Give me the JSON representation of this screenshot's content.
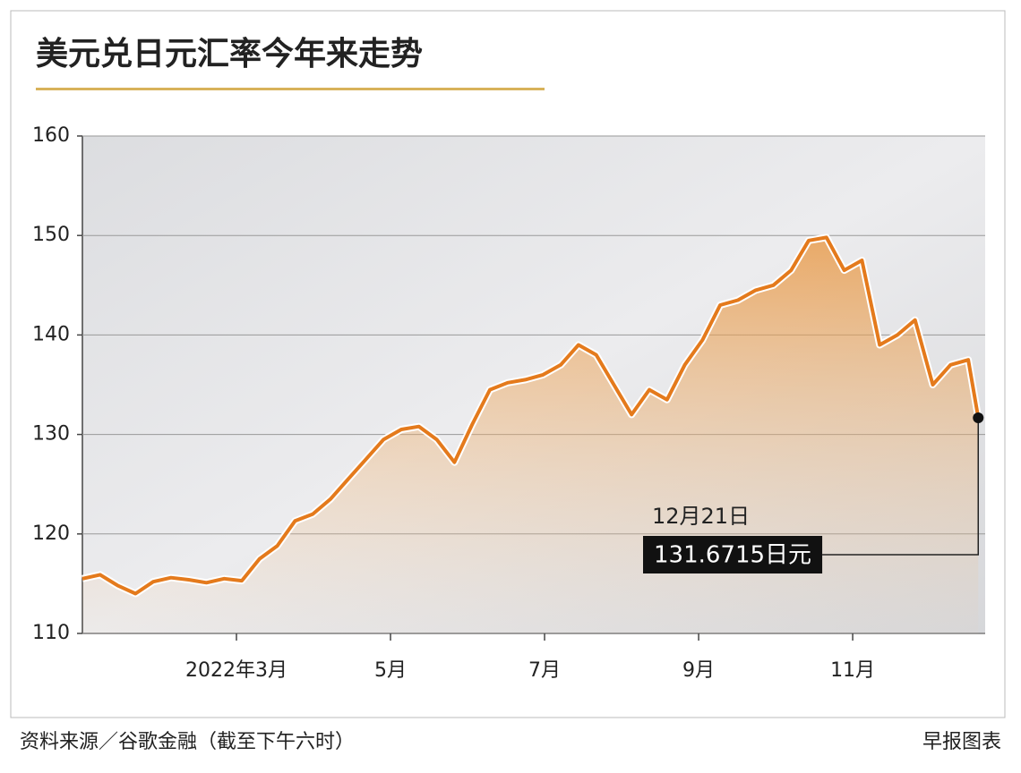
{
  "chart_data": {
    "type": "line",
    "title": "美元兑日元汇率今年来走势",
    "x": [
      0,
      0.23,
      0.46,
      0.69,
      0.92,
      1.15,
      1.38,
      1.61,
      1.84,
      2.07,
      2.3,
      2.53,
      2.76,
      2.99,
      3.22,
      3.45,
      3.68,
      3.91,
      4.14,
      4.37,
      4.6,
      4.83,
      5.06,
      5.29,
      5.52,
      5.75,
      5.98,
      6.21,
      6.44,
      6.67,
      6.9,
      7.13,
      7.36,
      7.59,
      7.82,
      8.05,
      8.28,
      8.51,
      8.74,
      8.97,
      9.2,
      9.43,
      9.66,
      9.89,
      10.12,
      10.35,
      10.58,
      10.81,
      11.04,
      11.27,
      11.5,
      11.63
    ],
    "values": [
      115.5,
      115.9,
      114.8,
      114.0,
      115.2,
      115.6,
      115.4,
      115.1,
      115.5,
      115.3,
      117.5,
      118.8,
      121.3,
      122.0,
      123.5,
      125.5,
      127.5,
      129.5,
      130.5,
      130.8,
      129.5,
      127.2,
      131.0,
      134.5,
      135.2,
      135.5,
      136.0,
      137.0,
      139.0,
      138.0,
      135.0,
      132.0,
      134.5,
      133.5,
      137.0,
      139.5,
      143.0,
      143.5,
      144.5,
      145.0,
      146.5,
      149.5,
      149.8,
      146.5,
      147.5,
      139.0,
      140.0,
      141.5,
      135.0,
      137.0,
      137.5,
      131.6715
    ],
    "color": "#e47a1c",
    "xlim": [
      0,
      11.72
    ],
    "xticks": [
      {
        "value": 2,
        "label": "2022年3月"
      },
      {
        "value": 4,
        "label": "5月"
      },
      {
        "value": 6,
        "label": "7月"
      },
      {
        "value": 8,
        "label": "9月"
      },
      {
        "value": 10,
        "label": "11月"
      }
    ],
    "ylim": [
      110,
      160
    ],
    "yticks": [
      110,
      120,
      130,
      140,
      150,
      160
    ],
    "grid": true,
    "annotation": {
      "date": "12月21日",
      "label": "131.6715日元"
    },
    "source": "资料来源／谷歌金融（截至下午六时）",
    "credit": "早报图表"
  }
}
